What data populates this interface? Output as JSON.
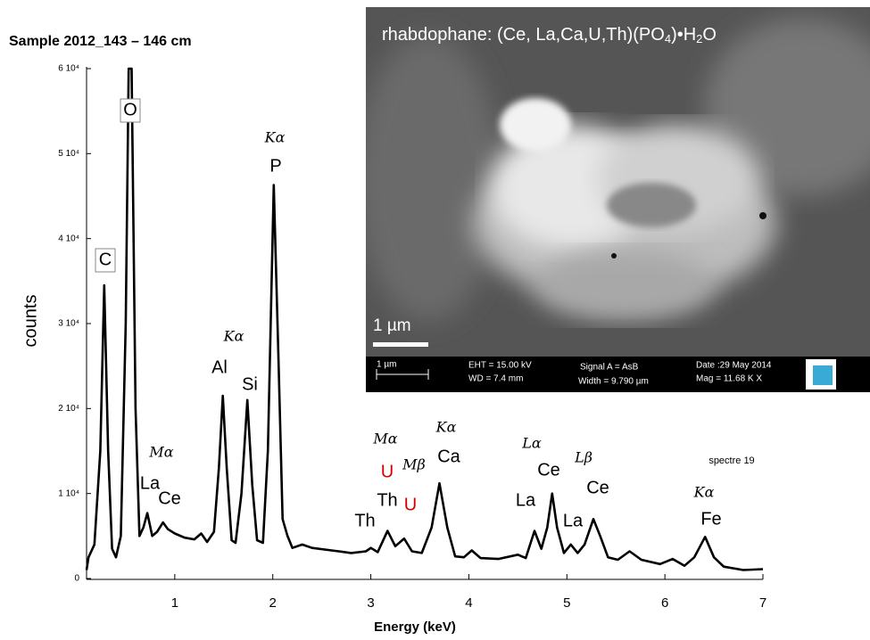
{
  "chart_data": {
    "type": "line",
    "title": "Sample 2012_143 – 146 cm",
    "x_label": "Energy (keV)",
    "y_label": "counts",
    "xlim": [
      0.1,
      7
    ],
    "ylim": [
      0,
      60000
    ],
    "xticks": [
      1,
      2,
      3,
      4,
      5,
      6,
      7
    ],
    "yticks": [
      {
        "value": 0,
        "label": "0"
      },
      {
        "value": 10000,
        "label": "1 10⁴"
      },
      {
        "value": 20000,
        "label": "2 10⁴"
      },
      {
        "value": 30000,
        "label": "3 10⁴"
      },
      {
        "value": 40000,
        "label": "4 10⁴"
      },
      {
        "value": 50000,
        "label": "5 10⁴"
      },
      {
        "value": 60000,
        "label": "6 10⁴"
      }
    ],
    "series": [
      {
        "name": "spectre 19",
        "color": "#000000",
        "x": [
          0.1,
          0.12,
          0.18,
          0.24,
          0.28,
          0.32,
          0.36,
          0.4,
          0.45,
          0.5,
          0.53,
          0.56,
          0.6,
          0.64,
          0.68,
          0.72,
          0.77,
          0.82,
          0.88,
          0.93,
          1.0,
          1.1,
          1.2,
          1.27,
          1.33,
          1.4,
          1.45,
          1.49,
          1.53,
          1.58,
          1.62,
          1.68,
          1.74,
          1.79,
          1.84,
          1.9,
          1.95,
          2.01,
          2.06,
          2.1,
          2.15,
          2.2,
          2.3,
          2.4,
          2.6,
          2.8,
          2.95,
          3.0,
          3.07,
          3.17,
          3.25,
          3.34,
          3.42,
          3.52,
          3.62,
          3.7,
          3.78,
          3.86,
          3.95,
          4.03,
          4.12,
          4.3,
          4.5,
          4.58,
          4.67,
          4.74,
          4.8,
          4.85,
          4.9,
          4.97,
          5.04,
          5.11,
          5.18,
          5.27,
          5.34,
          5.42,
          5.52,
          5.64,
          5.76,
          5.95,
          6.08,
          6.2,
          6.3,
          6.41,
          6.5,
          6.6,
          6.8,
          7.0
        ],
        "values": [
          1000,
          2500,
          4000,
          15000,
          34500,
          15000,
          3500,
          2500,
          5000,
          30000,
          60000,
          60000,
          20000,
          5000,
          6000,
          7700,
          5000,
          5500,
          6600,
          5800,
          5300,
          4800,
          4600,
          5300,
          4300,
          5500,
          13000,
          21500,
          13000,
          4500,
          4200,
          10000,
          21000,
          11000,
          4500,
          4200,
          15000,
          46300,
          25000,
          7000,
          5000,
          3600,
          4000,
          3600,
          3300,
          3000,
          3200,
          3600,
          3100,
          5600,
          3800,
          4700,
          3200,
          3000,
          6000,
          11200,
          6000,
          2600,
          2500,
          3300,
          2400,
          2300,
          2800,
          2400,
          5600,
          3500,
          6000,
          10000,
          6000,
          3000,
          4000,
          3000,
          4000,
          7000,
          5000,
          2500,
          2200,
          3200,
          2200,
          1700,
          2300,
          1500,
          2500,
          4900,
          2500,
          1400,
          1000,
          1100
        ]
      }
    ],
    "annotations": [
      "C",
      "O",
      "Kα",
      "P",
      "Kα",
      "Al",
      "Si",
      "Mα",
      "La",
      "Ce",
      "Th",
      "Mα",
      "U",
      "Mβ",
      "Th",
      "U",
      "Kα",
      "Ca",
      "Lα",
      "Ce",
      "Lβ",
      "La",
      "La",
      "Ce",
      "spectre 19",
      "Kα",
      "Fe"
    ],
    "inset": {
      "caption_parts": [
        "rhabdophane: (Ce, La,Ca,U,Th)(PO",
        "4",
        ")•H",
        "2",
        "O"
      ],
      "scale_label": "1 µm",
      "info": [
        "1 µm",
        "EHT = 15.00 kV",
        "WD = 7.4 mm",
        "Signal A = AsB",
        "Width = 9.790 µm",
        "Date :29 May 2014",
        "Mag = 11.68 K X"
      ]
    }
  }
}
